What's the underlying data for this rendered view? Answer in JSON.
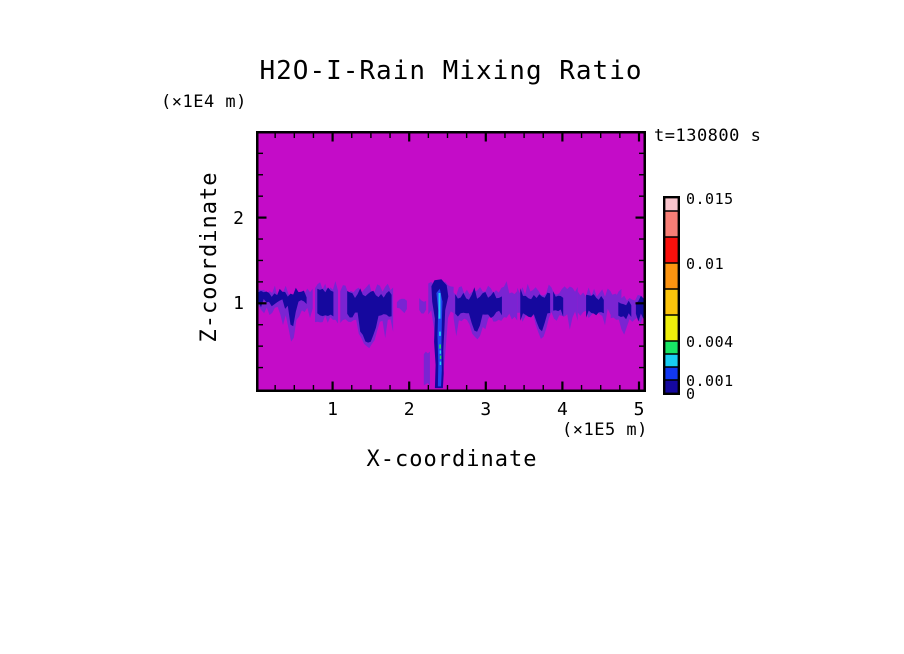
{
  "title": "H2O-I-Rain Mixing Ratio",
  "time_label": "t=130800 s",
  "axes": {
    "x": {
      "label": "X-coordinate",
      "units": "(×1E5 m)",
      "range": [
        0,
        5.09
      ],
      "major_ticks": [
        1,
        2,
        3,
        4,
        5
      ],
      "major_tick_labels": [
        "1",
        "2",
        "3",
        "4",
        "5"
      ],
      "minor_tick_step": 0.25
    },
    "z": {
      "label": "Z-coordinate",
      "units": "(×1E4 m)",
      "range": [
        0,
        3.04
      ],
      "major_ticks": [
        1,
        2
      ],
      "major_tick_labels": [
        "1",
        "2"
      ],
      "minor_tick_step": 0.25
    }
  },
  "colorbar": {
    "max": 0.015,
    "levels": [
      0,
      0.001,
      0.002,
      0.003,
      0.004,
      0.006,
      0.008,
      0.01,
      0.012,
      0.014,
      0.015
    ],
    "colors_bottom_to_top": [
      "#15089e",
      "#1238f2",
      "#18cdf2",
      "#18e564",
      "#eeee0b",
      "#fcc40b",
      "#fc9410",
      "#fa100c",
      "#f87e76",
      "#fac4cc"
    ],
    "labels": [
      {
        "value": 0.015,
        "text": "0.015"
      },
      {
        "value": 0.01,
        "text": "0.01"
      },
      {
        "value": 0.004,
        "text": "0.004"
      },
      {
        "value": 0.001,
        "text": "0.001"
      },
      {
        "value": 0,
        "text": "0"
      }
    ]
  },
  "chart_data": {
    "type": "heatmap",
    "title": "H2O-I-Rain Mixing Ratio",
    "time": "t=130800 s",
    "xlabel": "X-coordinate (×1E5 m)",
    "ylabel": "Z-coordinate (×1E4 m)",
    "x_range": [
      0,
      5.09
    ],
    "z_range": [
      0,
      3.04
    ],
    "value_units": "mixing ratio",
    "background_value": 0,
    "palette": {
      "background": "#c40cc8",
      "violet": "#7a24d2",
      "navy": "#15089e",
      "blue": "#2147ee",
      "cyan": "#25cdf2",
      "green": "#21d465"
    },
    "value_of_color": {
      "background": "0",
      "violet": "<0.001 fringe",
      "navy": "0-0.001",
      "blue": "0.001-0.002",
      "cyan": "0.002-0.003",
      "green": "0.003-0.004"
    },
    "features": [
      {
        "kind": "band",
        "color": "violet",
        "x0": 0.0,
        "x1": 0.74,
        "ztop": 1.19,
        "zbot": 0.86,
        "amp": 0.14,
        "seed": 11,
        "spikes": [
          {
            "x": 0.47,
            "z": 0.52,
            "w": 0.07
          }
        ]
      },
      {
        "kind": "band",
        "color": "violet",
        "x0": 0.77,
        "x1": 1.07,
        "ztop": 1.23,
        "zbot": 0.76,
        "amp": 0.12,
        "seed": 12,
        "spikes": []
      },
      {
        "kind": "band",
        "color": "violet",
        "x0": 1.1,
        "x1": 1.79,
        "ztop": 1.23,
        "zbot": 0.72,
        "amp": 0.13,
        "seed": 13,
        "spikes": [
          {
            "x": 1.46,
            "z": 0.47,
            "w": 0.15
          }
        ]
      },
      {
        "kind": "band",
        "color": "violet",
        "x0": 1.84,
        "x1": 1.97,
        "ztop": 1.06,
        "zbot": 0.9,
        "amp": 0.06,
        "seed": 14,
        "spikes": []
      },
      {
        "kind": "band",
        "color": "violet",
        "x0": 2.13,
        "x1": 2.22,
        "ztop": 1.05,
        "zbot": 0.91,
        "amp": 0.04,
        "seed": 15,
        "spikes": []
      },
      {
        "kind": "band",
        "color": "violet",
        "x0": 2.25,
        "x1": 2.58,
        "ztop": 1.28,
        "zbot": 0.85,
        "amp": 0.1,
        "seed": 16,
        "spikes": [
          {
            "x": 2.41,
            "z": 0.02,
            "w": 0.1
          }
        ]
      },
      {
        "kind": "band",
        "color": "violet",
        "x0": 2.58,
        "x1": 3.41,
        "ztop": 1.2,
        "zbot": 0.78,
        "amp": 0.13,
        "seed": 17,
        "spikes": [
          {
            "x": 2.88,
            "z": 0.56,
            "w": 0.11
          }
        ]
      },
      {
        "kind": "band",
        "color": "violet",
        "x0": 3.41,
        "x1": 4.2,
        "ztop": 1.2,
        "zbot": 0.82,
        "amp": 0.13,
        "seed": 18,
        "spikes": [
          {
            "x": 3.73,
            "z": 0.58,
            "w": 0.1
          }
        ]
      },
      {
        "kind": "band",
        "color": "violet",
        "x0": 4.2,
        "x1": 4.77,
        "ztop": 1.17,
        "zbot": 0.85,
        "amp": 0.11,
        "seed": 19,
        "spikes": []
      },
      {
        "kind": "band",
        "color": "violet",
        "x0": 4.63,
        "x1": 5.09,
        "ztop": 1.12,
        "zbot": 0.76,
        "amp": 0.11,
        "seed": 20,
        "spikes": [
          {
            "x": 4.8,
            "z": 0.62,
            "w": 0.06
          }
        ]
      },
      {
        "kind": "band",
        "color": "violet",
        "x0": 2.19,
        "x1": 2.27,
        "ztop": 0.44,
        "zbot": 0.04,
        "amp": 0.04,
        "seed": 21,
        "spikes": []
      },
      {
        "kind": "band",
        "color": "navy",
        "x0": 0.03,
        "x1": 0.66,
        "ztop": 1.15,
        "zbot": 0.97,
        "amp": 0.1,
        "seed": 31,
        "spikes": [
          {
            "x": 0.47,
            "z": 0.68,
            "w": 0.06
          }
        ]
      },
      {
        "kind": "band",
        "color": "navy",
        "x0": 0.8,
        "x1": 1.01,
        "ztop": 1.19,
        "zbot": 0.83,
        "amp": 0.08,
        "seed": 32,
        "spikes": []
      },
      {
        "kind": "band",
        "color": "navy",
        "x0": 1.19,
        "x1": 1.77,
        "ztop": 1.16,
        "zbot": 0.82,
        "amp": 0.11,
        "seed": 33,
        "spikes": [
          {
            "x": 1.47,
            "z": 0.51,
            "w": 0.13
          }
        ]
      },
      {
        "kind": "band",
        "color": "navy",
        "x0": 2.6,
        "x1": 3.21,
        "ztop": 1.14,
        "zbot": 0.83,
        "amp": 0.12,
        "seed": 34,
        "spikes": [
          {
            "x": 2.87,
            "z": 0.64,
            "w": 0.08
          }
        ]
      },
      {
        "kind": "band",
        "color": "navy",
        "x0": 3.45,
        "x1": 3.84,
        "ztop": 1.13,
        "zbot": 0.8,
        "amp": 0.11,
        "seed": 35,
        "spikes": [
          {
            "x": 3.72,
            "z": 0.66,
            "w": 0.07
          }
        ]
      },
      {
        "kind": "band",
        "color": "navy",
        "x0": 3.88,
        "x1": 4.01,
        "ztop": 1.12,
        "zbot": 0.89,
        "amp": 0.07,
        "seed": 36,
        "spikes": []
      },
      {
        "kind": "band",
        "color": "navy",
        "x0": 4.31,
        "x1": 4.54,
        "ztop": 1.11,
        "zbot": 0.86,
        "amp": 0.08,
        "seed": 37,
        "spikes": []
      },
      {
        "kind": "band",
        "color": "navy",
        "x0": 4.73,
        "x1": 4.9,
        "ztop": 1.04,
        "zbot": 0.84,
        "amp": 0.07,
        "seed": 38,
        "spikes": []
      },
      {
        "kind": "band",
        "color": "navy",
        "x0": 4.96,
        "x1": 5.09,
        "ztop": 1.06,
        "zbot": 0.87,
        "amp": 0.07,
        "seed": 39,
        "spikes": []
      },
      {
        "kind": "poly",
        "color": "navy",
        "pts": [
          [
            2.29,
            1.2
          ],
          [
            2.33,
            1.27
          ],
          [
            2.42,
            1.28
          ],
          [
            2.49,
            1.21
          ],
          [
            2.51,
            1.08
          ],
          [
            2.47,
            0.92
          ],
          [
            2.46,
            0.7
          ],
          [
            2.445,
            0.45
          ],
          [
            2.45,
            0.18
          ],
          [
            2.44,
            0.01
          ],
          [
            2.335,
            0.01
          ],
          [
            2.345,
            0.28
          ],
          [
            2.325,
            0.55
          ],
          [
            2.335,
            0.82
          ],
          [
            2.3,
            1.02
          ]
        ]
      },
      {
        "kind": "poly",
        "color": "blue",
        "pts": [
          [
            2.355,
            1.12
          ],
          [
            2.4,
            1.17
          ],
          [
            2.435,
            1.02
          ],
          [
            2.425,
            0.78
          ],
          [
            2.42,
            0.5
          ],
          [
            2.425,
            0.22
          ],
          [
            2.415,
            0.03
          ],
          [
            2.375,
            0.03
          ],
          [
            2.38,
            0.3
          ],
          [
            2.37,
            0.62
          ],
          [
            2.378,
            0.92
          ]
        ]
      },
      {
        "kind": "rect",
        "color": "cyan",
        "x": 2.383,
        "z": 0.82,
        "w": 0.026,
        "h": 0.3
      },
      {
        "kind": "rect",
        "color": "cyan",
        "x": 2.39,
        "z": 0.62,
        "w": 0.024,
        "h": 0.05
      },
      {
        "kind": "rect",
        "color": "green",
        "x": 2.392,
        "z": 0.47,
        "w": 0.024,
        "h": 0.05
      },
      {
        "kind": "rect",
        "color": "cyan",
        "x": 2.397,
        "z": 0.41,
        "w": 0.02,
        "h": 0.04
      },
      {
        "kind": "rect",
        "color": "green",
        "x": 2.4,
        "z": 0.35,
        "w": 0.02,
        "h": 0.04
      },
      {
        "kind": "rect",
        "color": "cyan",
        "x": 2.398,
        "z": 0.28,
        "w": 0.02,
        "h": 0.04
      }
    ],
    "summary": "Magenta background (zero rain). Jagged violet/navy rain band near z=1 spanning x=0-5.1 with hanging streaks; strong precipitation shaft at x≈2.4 reaching the surface with blue/cyan/green core values up to ~0.004."
  }
}
